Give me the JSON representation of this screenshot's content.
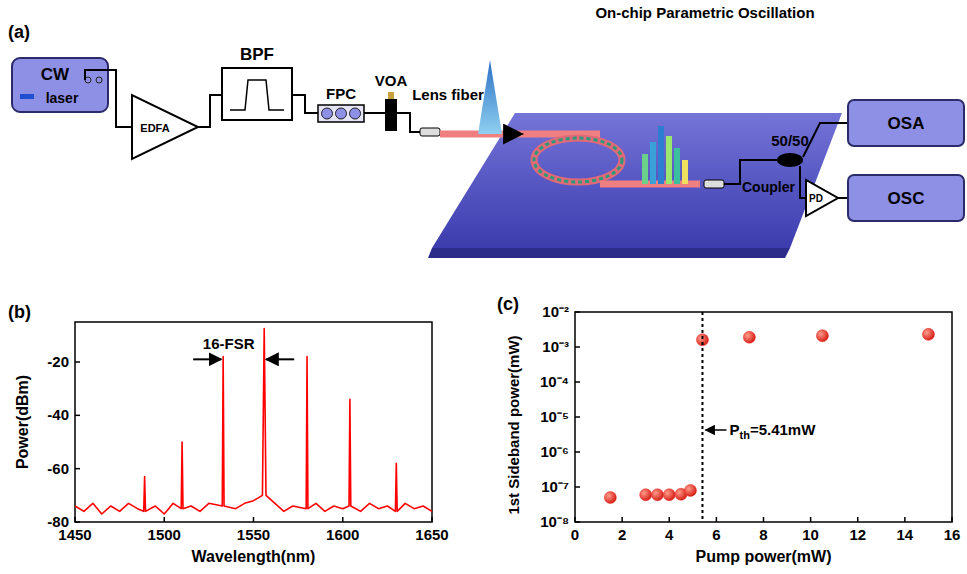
{
  "diagram": {
    "label": "(a)",
    "title": "On-chip Parametric Oscillation",
    "nodes": [
      {
        "label": "CW",
        "sublabel": "laser"
      },
      {
        "label": "EDFA"
      },
      {
        "label": "BPF"
      },
      {
        "label": "FPC"
      },
      {
        "label": "VOA"
      },
      {
        "label": "Lens fiber"
      },
      {
        "label": "50/50",
        "sublabel": "Coupler"
      },
      {
        "label": "PD"
      },
      {
        "label": "OSA"
      },
      {
        "label": "OSC"
      }
    ]
  },
  "chart_data": [
    {
      "type": "line",
      "panel": "(b)",
      "x_label": "Wavelength(nm)",
      "y_label": "Power(dBm)",
      "xlim": [
        1450,
        1650
      ],
      "ylim": [
        -80,
        -5
      ],
      "xticks": [
        1450,
        1500,
        1550,
        1600,
        1650
      ],
      "yticks": [
        -80,
        -60,
        -40,
        -20
      ],
      "grid": false,
      "x": [
        1450,
        1455,
        1460,
        1465,
        1470,
        1475,
        1480,
        1485,
        1488.5,
        1489,
        1489.5,
        1495,
        1500,
        1505,
        1509.5,
        1510,
        1510.5,
        1515,
        1520,
        1525,
        1532.5,
        1533,
        1533.5,
        1540,
        1545,
        1550,
        1555,
        1556,
        1557,
        1562,
        1567,
        1572,
        1579.5,
        1580,
        1580.5,
        1585,
        1590,
        1595,
        1600,
        1603.5,
        1604,
        1604.5,
        1610,
        1615,
        1620,
        1625,
        1629.5,
        1630,
        1630.5,
        1635,
        1640,
        1645,
        1650
      ],
      "series": [
        {
          "color": "#ff0000",
          "values": [
            -74,
            -76,
            -73,
            -77,
            -74,
            -76,
            -73,
            -75,
            -76,
            -63,
            -76,
            -74,
            -77,
            -73,
            -75,
            -50,
            -75,
            -74,
            -76,
            -73,
            -74,
            -18,
            -74,
            -75,
            -73,
            -72,
            -70,
            -7.5,
            -70,
            -73,
            -76,
            -74,
            -75,
            -18,
            -75,
            -73,
            -76,
            -74,
            -75,
            -74,
            -34,
            -74,
            -76,
            -73,
            -75,
            -74,
            -76,
            -58,
            -76,
            -73,
            -75,
            -74,
            -76
          ]
        }
      ],
      "annotations": [
        {
          "text": "16-FSR",
          "x": [
            1533,
            1556
          ],
          "y": -19
        }
      ]
    },
    {
      "type": "scatter",
      "panel": "(c)",
      "x_label": "Pump power(mW)",
      "y_label": "1st Sideband power(mW)",
      "log": "y",
      "xlim": [
        0,
        16
      ],
      "ylim": [
        1e-08,
        0.01
      ],
      "xticks": [
        0,
        2,
        4,
        6,
        8,
        10,
        12,
        14,
        16
      ],
      "yticks": [
        {
          "value": 1e-08,
          "label": "10⁻⁸"
        },
        {
          "value": 1e-07,
          "label": "10⁻⁷"
        },
        {
          "value": 1e-06,
          "label": "10⁻⁶"
        },
        {
          "value": 1e-05,
          "label": "10⁻⁵"
        },
        {
          "value": 0.0001,
          "label": "10⁻⁴"
        },
        {
          "value": 0.001,
          "label": "10⁻³"
        },
        {
          "value": 0.01,
          "label": "10⁻²"
        }
      ],
      "grid": false,
      "x": [
        1.5,
        3.0,
        3.5,
        4.0,
        4.5,
        4.9,
        5.41,
        7.4,
        10.5,
        15.0
      ],
      "series": [
        {
          "color": "#e8221c",
          "marker": "circle",
          "values": [
            5e-08,
            6e-08,
            6e-08,
            6e-08,
            6.2e-08,
            8e-08,
            0.0016,
            0.0019,
            0.0021,
            0.0023
          ]
        }
      ],
      "annotations": [
        {
          "text": "P",
          "subscript": "th",
          "suffix": "=5.41mW",
          "x": 5.41
        }
      ]
    }
  ]
}
